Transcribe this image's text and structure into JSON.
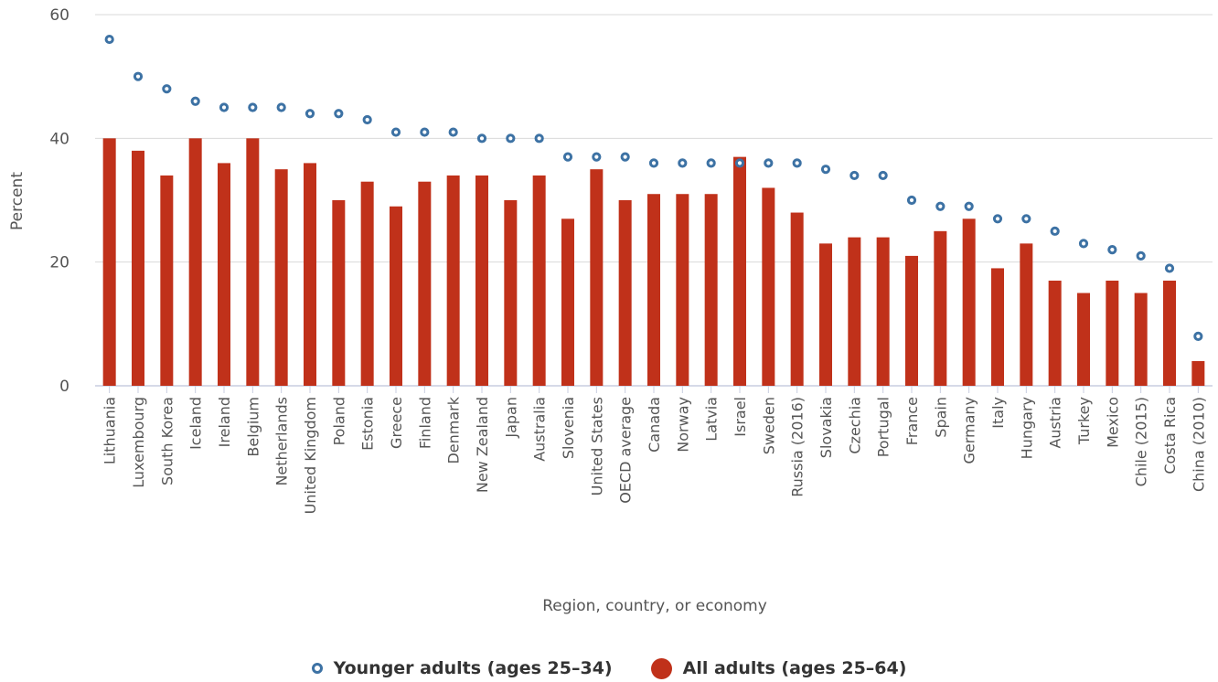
{
  "chart_data": {
    "type": "bar",
    "xlabel": "Region, country, or economy",
    "ylabel": "Percent",
    "ylim": [
      0,
      60
    ],
    "yticks": [
      0,
      20,
      40,
      60
    ],
    "grid": true,
    "legend_position": "bottom-center",
    "categories": [
      "Lithuania",
      "Luxembourg",
      "South Korea",
      "Iceland",
      "Ireland",
      "Belgium",
      "Netherlands",
      "United Kingdom",
      "Poland",
      "Estonia",
      "Greece",
      "Finland",
      "Denmark",
      "New Zealand",
      "Japan",
      "Australia",
      "Slovenia",
      "United States",
      "OECD average",
      "Canada",
      "Norway",
      "Latvia",
      "Israel",
      "Sweden",
      "Russia (2016)",
      "Slovakia",
      "Czechia",
      "Portugal",
      "France",
      "Spain",
      "Germany",
      "Italy",
      "Hungary",
      "Austria",
      "Turkey",
      "Mexico",
      "Chile (2015)",
      "Costa Rica",
      "China (2010)"
    ],
    "series": [
      {
        "name": "Younger adults (ages 25–34)",
        "marker": "ring",
        "color": "#3d72a4",
        "values": [
          56,
          50,
          48,
          46,
          45,
          45,
          45,
          44,
          44,
          43,
          41,
          41,
          41,
          40,
          40,
          40,
          37,
          37,
          37,
          36,
          36,
          36,
          36,
          36,
          36,
          35,
          34,
          34,
          30,
          29,
          29,
          27,
          27,
          25,
          23,
          22,
          21,
          19,
          8
        ]
      },
      {
        "name": "All adults (ages 25–64)",
        "marker": "bar",
        "color": "#c0311a",
        "values": [
          40,
          38,
          34,
          40,
          36,
          40,
          35,
          36,
          30,
          33,
          29,
          33,
          34,
          34,
          30,
          34,
          27,
          35,
          30,
          31,
          31,
          31,
          37,
          32,
          28,
          23,
          24,
          24,
          21,
          25,
          27,
          19,
          23,
          17,
          15,
          17,
          15,
          17,
          4
        ]
      }
    ]
  }
}
